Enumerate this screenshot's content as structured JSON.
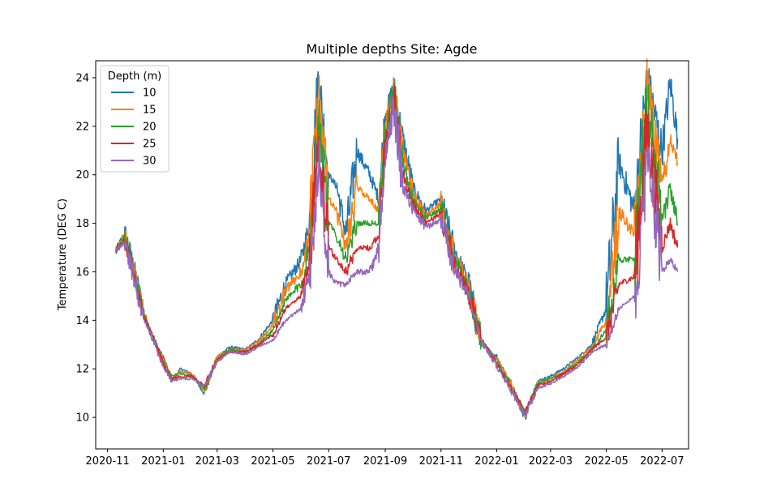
{
  "chart_data": {
    "type": "line",
    "title": "Multiple depths Site: Agde",
    "xlabel": "",
    "ylabel": "Temperature (DEG C)",
    "x_ticks": [
      "2020-11",
      "2021-01",
      "2021-03",
      "2021-05",
      "2021-07",
      "2021-09",
      "2021-11",
      "2022-01",
      "2022-03",
      "2022-05",
      "2022-07"
    ],
    "y_ticks": [
      10,
      12,
      14,
      16,
      18,
      20,
      22,
      24
    ],
    "ylim": [
      8.7,
      24.7
    ],
    "xlim": [
      "2020-10-19",
      "2022-07-30"
    ],
    "grid": false,
    "legend": {
      "title": "Depth (m)",
      "position": "top-left"
    },
    "series": [
      {
        "name": "10",
        "color": "#1f77b4",
        "points": [
          [
            "2020-11-10",
            16.8
          ],
          [
            "2020-11-20",
            17.6
          ],
          [
            "2020-12-01",
            16.0
          ],
          [
            "2020-12-10",
            14.5
          ],
          [
            "2020-12-20",
            13.2
          ],
          [
            "2021-01-01",
            12.5
          ],
          [
            "2021-01-10",
            11.5
          ],
          [
            "2021-01-20",
            12.0
          ],
          [
            "2021-02-01",
            11.8
          ],
          [
            "2021-02-15",
            11.0
          ],
          [
            "2021-03-01",
            12.5
          ],
          [
            "2021-03-15",
            12.9
          ],
          [
            "2021-04-01",
            12.8
          ],
          [
            "2021-04-15",
            13.2
          ],
          [
            "2021-05-01",
            14.0
          ],
          [
            "2021-05-15",
            15.5
          ],
          [
            "2021-06-01",
            16.5
          ],
          [
            "2021-06-10",
            18.0
          ],
          [
            "2021-06-20",
            24.0
          ],
          [
            "2021-07-01",
            20.0
          ],
          [
            "2021-07-10",
            19.5
          ],
          [
            "2021-07-20",
            17.5
          ],
          [
            "2021-08-01",
            21.0
          ],
          [
            "2021-08-15",
            20.0
          ],
          [
            "2021-08-25",
            19.0
          ],
          [
            "2021-09-01",
            22.5
          ],
          [
            "2021-09-10",
            23.7
          ],
          [
            "2021-09-20",
            21.5
          ],
          [
            "2021-10-01",
            19.5
          ],
          [
            "2021-10-15",
            18.5
          ],
          [
            "2021-11-01",
            19.0
          ],
          [
            "2021-11-15",
            17.0
          ],
          [
            "2021-12-01",
            15.5
          ],
          [
            "2021-12-15",
            13.0
          ],
          [
            "2022-01-01",
            12.5
          ],
          [
            "2022-01-15",
            11.5
          ],
          [
            "2022-02-01",
            10.0
          ],
          [
            "2022-02-15",
            11.5
          ],
          [
            "2022-03-01",
            11.7
          ],
          [
            "2022-03-15",
            12.0
          ],
          [
            "2022-04-01",
            12.5
          ],
          [
            "2022-04-15",
            13.0
          ],
          [
            "2022-05-01",
            14.5
          ],
          [
            "2022-05-15",
            20.5
          ],
          [
            "2022-06-01",
            18.5
          ],
          [
            "2022-06-15",
            24.0
          ],
          [
            "2022-07-01",
            21.0
          ],
          [
            "2022-07-10",
            23.8
          ],
          [
            "2022-07-18",
            21.5
          ]
        ]
      },
      {
        "name": "15",
        "color": "#ff7f0e",
        "points": [
          [
            "2020-11-10",
            16.9
          ],
          [
            "2020-11-20",
            17.5
          ],
          [
            "2020-12-01",
            15.9
          ],
          [
            "2020-12-10",
            14.4
          ],
          [
            "2020-12-20",
            13.3
          ],
          [
            "2021-01-01",
            12.4
          ],
          [
            "2021-01-10",
            11.6
          ],
          [
            "2021-01-20",
            11.9
          ],
          [
            "2021-02-01",
            11.8
          ],
          [
            "2021-02-15",
            11.1
          ],
          [
            "2021-03-01",
            12.5
          ],
          [
            "2021-03-15",
            12.8
          ],
          [
            "2021-04-01",
            12.8
          ],
          [
            "2021-04-15",
            13.1
          ],
          [
            "2021-05-01",
            13.8
          ],
          [
            "2021-05-15",
            15.2
          ],
          [
            "2021-06-01",
            16.0
          ],
          [
            "2021-06-10",
            17.5
          ],
          [
            "2021-06-20",
            23.3
          ],
          [
            "2021-07-01",
            19.0
          ],
          [
            "2021-07-10",
            18.5
          ],
          [
            "2021-07-20",
            17.0
          ],
          [
            "2021-08-01",
            19.5
          ],
          [
            "2021-08-15",
            19.0
          ],
          [
            "2021-08-25",
            18.5
          ],
          [
            "2021-09-01",
            22.0
          ],
          [
            "2021-09-10",
            23.6
          ],
          [
            "2021-09-20",
            21.0
          ],
          [
            "2021-10-01",
            19.2
          ],
          [
            "2021-10-15",
            18.3
          ],
          [
            "2021-11-01",
            18.8
          ],
          [
            "2021-11-15",
            16.8
          ],
          [
            "2021-12-01",
            15.4
          ],
          [
            "2021-12-15",
            13.1
          ],
          [
            "2022-01-01",
            12.4
          ],
          [
            "2022-01-15",
            11.5
          ],
          [
            "2022-02-01",
            10.1
          ],
          [
            "2022-02-15",
            11.4
          ],
          [
            "2022-03-01",
            11.6
          ],
          [
            "2022-03-15",
            11.9
          ],
          [
            "2022-04-01",
            12.4
          ],
          [
            "2022-04-15",
            12.9
          ],
          [
            "2022-05-01",
            14.0
          ],
          [
            "2022-05-15",
            18.5
          ],
          [
            "2022-06-01",
            17.5
          ],
          [
            "2022-06-15",
            23.5
          ],
          [
            "2022-07-01",
            19.5
          ],
          [
            "2022-07-10",
            21.5
          ],
          [
            "2022-07-18",
            20.5
          ]
        ]
      },
      {
        "name": "20",
        "color": "#2ca02c",
        "points": [
          [
            "2020-11-10",
            16.9
          ],
          [
            "2020-11-20",
            17.4
          ],
          [
            "2020-12-01",
            15.8
          ],
          [
            "2020-12-10",
            14.3
          ],
          [
            "2020-12-20",
            13.4
          ],
          [
            "2021-01-01",
            12.3
          ],
          [
            "2021-01-10",
            11.7
          ],
          [
            "2021-01-20",
            11.8
          ],
          [
            "2021-02-01",
            11.7
          ],
          [
            "2021-02-15",
            11.2
          ],
          [
            "2021-03-01",
            12.4
          ],
          [
            "2021-03-15",
            12.8
          ],
          [
            "2021-04-01",
            12.7
          ],
          [
            "2021-04-15",
            13.0
          ],
          [
            "2021-05-01",
            13.6
          ],
          [
            "2021-05-15",
            14.8
          ],
          [
            "2021-06-01",
            15.5
          ],
          [
            "2021-06-10",
            17.0
          ],
          [
            "2021-06-20",
            22.5
          ],
          [
            "2021-07-01",
            18.0
          ],
          [
            "2021-07-10",
            17.5
          ],
          [
            "2021-07-20",
            16.5
          ],
          [
            "2021-08-01",
            18.0
          ],
          [
            "2021-08-15",
            18.0
          ],
          [
            "2021-08-25",
            18.0
          ],
          [
            "2021-09-01",
            21.5
          ],
          [
            "2021-09-10",
            23.5
          ],
          [
            "2021-09-20",
            20.5
          ],
          [
            "2021-10-01",
            19.0
          ],
          [
            "2021-10-15",
            18.2
          ],
          [
            "2021-11-01",
            18.6
          ],
          [
            "2021-11-15",
            16.6
          ],
          [
            "2021-12-01",
            15.3
          ],
          [
            "2021-12-15",
            13.2
          ],
          [
            "2022-01-01",
            12.3
          ],
          [
            "2022-01-15",
            11.4
          ],
          [
            "2022-02-01",
            10.2
          ],
          [
            "2022-02-15",
            11.4
          ],
          [
            "2022-03-01",
            11.6
          ],
          [
            "2022-03-15",
            11.8
          ],
          [
            "2022-04-01",
            12.3
          ],
          [
            "2022-04-15",
            12.8
          ],
          [
            "2022-05-01",
            13.6
          ],
          [
            "2022-05-15",
            16.5
          ],
          [
            "2022-06-01",
            16.5
          ],
          [
            "2022-06-15",
            23.0
          ],
          [
            "2022-07-01",
            18.0
          ],
          [
            "2022-07-10",
            19.5
          ],
          [
            "2022-07-18",
            18.0
          ]
        ]
      },
      {
        "name": "25",
        "color": "#d62728",
        "points": [
          [
            "2020-11-10",
            16.9
          ],
          [
            "2020-11-20",
            17.3
          ],
          [
            "2020-12-01",
            15.7
          ],
          [
            "2020-12-10",
            14.2
          ],
          [
            "2020-12-20",
            13.4
          ],
          [
            "2021-01-01",
            12.2
          ],
          [
            "2021-01-10",
            11.6
          ],
          [
            "2021-01-20",
            11.7
          ],
          [
            "2021-02-01",
            11.7
          ],
          [
            "2021-02-15",
            11.3
          ],
          [
            "2021-03-01",
            12.4
          ],
          [
            "2021-03-15",
            12.7
          ],
          [
            "2021-04-01",
            12.7
          ],
          [
            "2021-04-15",
            13.0
          ],
          [
            "2021-05-01",
            13.4
          ],
          [
            "2021-05-15",
            14.5
          ],
          [
            "2021-06-01",
            15.0
          ],
          [
            "2021-06-10",
            16.5
          ],
          [
            "2021-06-20",
            21.5
          ],
          [
            "2021-07-01",
            17.0
          ],
          [
            "2021-07-10",
            16.5
          ],
          [
            "2021-07-20",
            16.0
          ],
          [
            "2021-08-01",
            17.0
          ],
          [
            "2021-08-15",
            17.0
          ],
          [
            "2021-08-25",
            17.5
          ],
          [
            "2021-09-01",
            21.0
          ],
          [
            "2021-09-10",
            23.4
          ],
          [
            "2021-09-20",
            20.0
          ],
          [
            "2021-10-01",
            18.8
          ],
          [
            "2021-10-15",
            18.0
          ],
          [
            "2021-11-01",
            18.4
          ],
          [
            "2021-11-15",
            16.4
          ],
          [
            "2021-12-01",
            15.2
          ],
          [
            "2021-12-15",
            13.2
          ],
          [
            "2022-01-01",
            12.2
          ],
          [
            "2022-01-15",
            11.3
          ],
          [
            "2022-02-01",
            10.2
          ],
          [
            "2022-02-15",
            11.3
          ],
          [
            "2022-03-01",
            11.5
          ],
          [
            "2022-03-15",
            11.8
          ],
          [
            "2022-04-01",
            12.2
          ],
          [
            "2022-04-15",
            12.8
          ],
          [
            "2022-05-01",
            13.3
          ],
          [
            "2022-05-15",
            15.5
          ],
          [
            "2022-06-01",
            15.8
          ],
          [
            "2022-06-15",
            22.0
          ],
          [
            "2022-07-01",
            17.0
          ],
          [
            "2022-07-10",
            18.0
          ],
          [
            "2022-07-18",
            17.0
          ]
        ]
      },
      {
        "name": "30",
        "color": "#9467bd",
        "points": [
          [
            "2020-11-10",
            16.9
          ],
          [
            "2020-11-20",
            17.2
          ],
          [
            "2020-12-01",
            15.6
          ],
          [
            "2020-12-10",
            14.1
          ],
          [
            "2020-12-20",
            13.3
          ],
          [
            "2021-01-01",
            12.1
          ],
          [
            "2021-01-10",
            11.5
          ],
          [
            "2021-01-20",
            11.6
          ],
          [
            "2021-02-01",
            11.6
          ],
          [
            "2021-02-15",
            11.3
          ],
          [
            "2021-03-01",
            12.3
          ],
          [
            "2021-03-15",
            12.7
          ],
          [
            "2021-04-01",
            12.6
          ],
          [
            "2021-04-15",
            12.9
          ],
          [
            "2021-05-01",
            13.2
          ],
          [
            "2021-05-15",
            14.0
          ],
          [
            "2021-06-01",
            14.5
          ],
          [
            "2021-06-10",
            16.0
          ],
          [
            "2021-06-20",
            20.5
          ],
          [
            "2021-07-01",
            16.0
          ],
          [
            "2021-07-10",
            15.5
          ],
          [
            "2021-07-20",
            15.5
          ],
          [
            "2021-08-01",
            16.0
          ],
          [
            "2021-08-15",
            16.0
          ],
          [
            "2021-08-25",
            17.0
          ],
          [
            "2021-09-01",
            20.5
          ],
          [
            "2021-09-10",
            23.0
          ],
          [
            "2021-09-20",
            19.5
          ],
          [
            "2021-10-01",
            18.6
          ],
          [
            "2021-10-15",
            17.8
          ],
          [
            "2021-11-01",
            18.2
          ],
          [
            "2021-11-15",
            16.2
          ],
          [
            "2021-12-01",
            15.0
          ],
          [
            "2021-12-15",
            13.2
          ],
          [
            "2022-01-01",
            12.1
          ],
          [
            "2022-01-15",
            11.2
          ],
          [
            "2022-02-01",
            10.1
          ],
          [
            "2022-02-15",
            11.2
          ],
          [
            "2022-03-01",
            11.4
          ],
          [
            "2022-03-15",
            11.7
          ],
          [
            "2022-04-01",
            12.1
          ],
          [
            "2022-04-15",
            12.7
          ],
          [
            "2022-05-01",
            13.0
          ],
          [
            "2022-05-15",
            14.5
          ],
          [
            "2022-06-01",
            15.0
          ],
          [
            "2022-06-15",
            21.0
          ],
          [
            "2022-07-01",
            16.0
          ],
          [
            "2022-07-10",
            16.5
          ],
          [
            "2022-07-18",
            16.0
          ]
        ]
      }
    ]
  }
}
